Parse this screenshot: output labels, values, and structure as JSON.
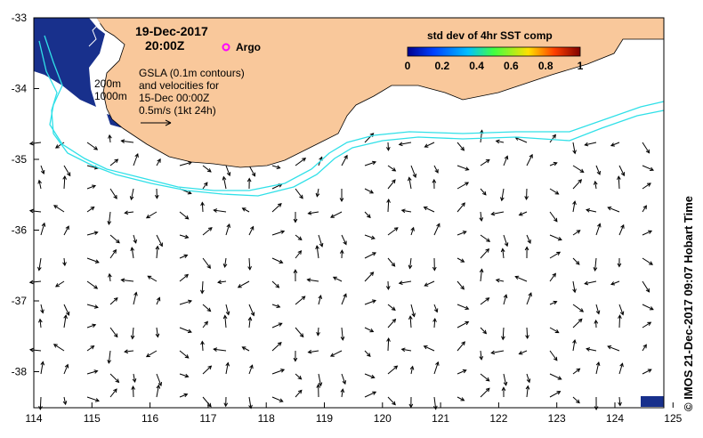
{
  "map": {
    "date_line1": "19-Dec-2017",
    "date_line2": "20:00Z",
    "argo_label": "Argo",
    "gsla_line1": "GSLA (0.1m contours)",
    "gsla_line2": "and velocities for",
    "gsla_line3": "15-Dec 00:00Z",
    "gsla_line4": "0.5m/s (1kt 24h)",
    "depth_200": "200m",
    "depth_1000": "1000m",
    "credit": "© IMOS 21-Dec-2017 09:07 Hobart Time",
    "colorbar": {
      "title": "std dev of 4hr SST comp",
      "ticks": [
        "0",
        "0.2",
        "0.4",
        "0.6",
        "0.8",
        "1"
      ],
      "colormap": [
        "#00008f",
        "#0040ff",
        "#00c0ff",
        "#40ff40",
        "#ffe000",
        "#ff4000",
        "#800000"
      ]
    },
    "x_ticks": [
      "114",
      "115",
      "116",
      "117",
      "118",
      "119",
      "120",
      "121",
      "122",
      "123",
      "124",
      "125"
    ],
    "y_ticks": [
      "-33",
      "-34",
      "-35",
      "-36",
      "-37",
      "-38"
    ],
    "colors": {
      "land": "#f9c89b",
      "ocean_sst": "#18308c",
      "contour": "#30e0e8",
      "argo": "#ff00ff"
    }
  }
}
